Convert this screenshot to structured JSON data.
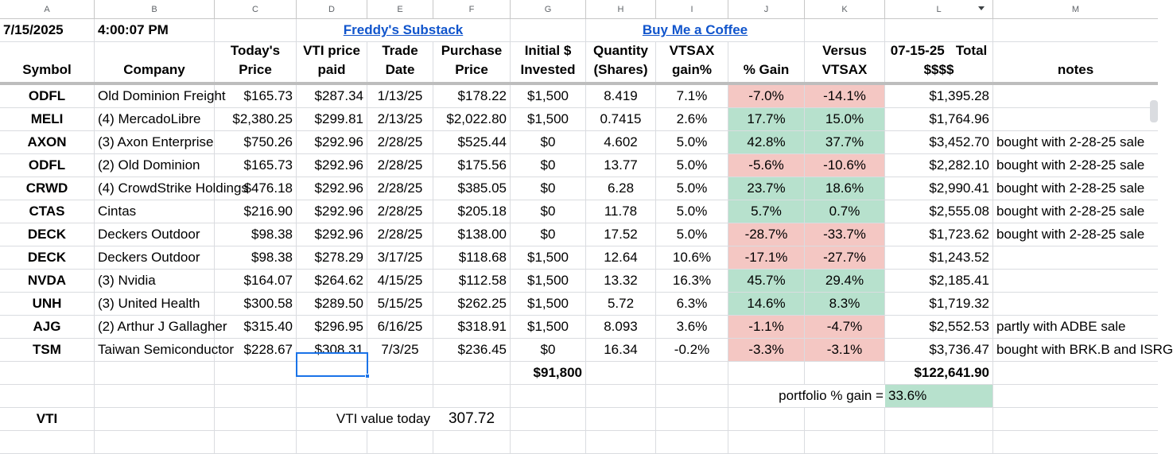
{
  "columns": [
    "A",
    "B",
    "C",
    "D",
    "E",
    "F",
    "G",
    "H",
    "I",
    "J",
    "K",
    "L",
    "M"
  ],
  "row1": {
    "date": "7/15/2025",
    "time": "4:00:07 PM",
    "substack_link": "Freddy's Substack",
    "coffee_link": "Buy Me a Coffee"
  },
  "header": {
    "symbol": "Symbol",
    "company": "Company",
    "todays_price": [
      "Today's",
      "Price"
    ],
    "vti_price_paid": [
      "VTI price",
      "paid"
    ],
    "trade_date": [
      "Trade",
      "Date"
    ],
    "purchase_price": [
      "Purchase",
      "Price"
    ],
    "initial_invested": [
      "Initial $",
      "Invested"
    ],
    "quantity": [
      "Quantity",
      "(Shares)"
    ],
    "vtsax_gain": [
      "VTSAX",
      "gain%"
    ],
    "pct_gain": "% Gain",
    "versus_vtsax": [
      "Versus",
      "VTSAX"
    ],
    "total": [
      "07-15-25   Total",
      "$$$$"
    ],
    "notes": "notes"
  },
  "rows": [
    {
      "symbol": "ODFL",
      "company": "Old Dominion Freight",
      "price": "$165.73",
      "vti": "$287.34",
      "date": "1/13/25",
      "purchase": "$178.22",
      "invested": "$1,500",
      "qty": "8.419",
      "vtsax": "7.1%",
      "gain": "-7.0%",
      "versus": "-14.1%",
      "total": "$1,395.28",
      "notes": "",
      "gain_pos": false,
      "versus_pos": false
    },
    {
      "symbol": "MELI",
      "company": "(4) MercadoLibre",
      "price": "$2,380.25",
      "vti": "$299.81",
      "date": "2/13/25",
      "purchase": "$2,022.80",
      "invested": "$1,500",
      "qty": "0.7415",
      "vtsax": "2.6%",
      "gain": "17.7%",
      "versus": "15.0%",
      "total": "$1,764.96",
      "notes": "",
      "gain_pos": true,
      "versus_pos": true
    },
    {
      "symbol": "AXON",
      "company": "(3) Axon Enterprise",
      "price": "$750.26",
      "vti": "$292.96",
      "date": "2/28/25",
      "purchase": "$525.44",
      "invested": "$0",
      "qty": "4.602",
      "vtsax": "5.0%",
      "gain": "42.8%",
      "versus": "37.7%",
      "total": "$3,452.70",
      "notes": "bought with 2-28-25 sale",
      "gain_pos": true,
      "versus_pos": true
    },
    {
      "symbol": "ODFL",
      "company": "(2) Old Dominion",
      "price": "$165.73",
      "vti": "$292.96",
      "date": "2/28/25",
      "purchase": "$175.56",
      "invested": "$0",
      "qty": "13.77",
      "vtsax": "5.0%",
      "gain": "-5.6%",
      "versus": "-10.6%",
      "total": "$2,282.10",
      "notes": "bought with 2-28-25 sale",
      "gain_pos": false,
      "versus_pos": false
    },
    {
      "symbol": "CRWD",
      "company": "(4) CrowdStrike Holdings",
      "price": "$476.18",
      "vti": "$292.96",
      "date": "2/28/25",
      "purchase": "$385.05",
      "invested": "$0",
      "qty": "6.28",
      "vtsax": "5.0%",
      "gain": "23.7%",
      "versus": "18.6%",
      "total": "$2,990.41",
      "notes": "bought with 2-28-25 sale",
      "gain_pos": true,
      "versus_pos": true
    },
    {
      "symbol": "CTAS",
      "company": "Cintas",
      "price": "$216.90",
      "vti": "$292.96",
      "date": "2/28/25",
      "purchase": "$205.18",
      "invested": "$0",
      "qty": "11.78",
      "vtsax": "5.0%",
      "gain": "5.7%",
      "versus": "0.7%",
      "total": "$2,555.08",
      "notes": "bought with 2-28-25 sale",
      "gain_pos": true,
      "versus_pos": true
    },
    {
      "symbol": "DECK",
      "company": "Deckers Outdoor",
      "price": "$98.38",
      "vti": "$292.96",
      "date": "2/28/25",
      "purchase": "$138.00",
      "invested": "$0",
      "qty": "17.52",
      "vtsax": "5.0%",
      "gain": "-28.7%",
      "versus": "-33.7%",
      "total": "$1,723.62",
      "notes": "bought with 2-28-25 sale",
      "gain_pos": false,
      "versus_pos": false
    },
    {
      "symbol": "DECK",
      "company": "Deckers Outdoor",
      "price": "$98.38",
      "vti": "$278.29",
      "date": "3/17/25",
      "purchase": "$118.68",
      "invested": "$1,500",
      "qty": "12.64",
      "vtsax": "10.6%",
      "gain": "-17.1%",
      "versus": "-27.7%",
      "total": "$1,243.52",
      "notes": "",
      "gain_pos": false,
      "versus_pos": false
    },
    {
      "symbol": "NVDA",
      "company": "(3) Nvidia",
      "price": "$164.07",
      "vti": "$264.62",
      "date": "4/15/25",
      "purchase": "$112.58",
      "invested": "$1,500",
      "qty": "13.32",
      "vtsax": "16.3%",
      "gain": "45.7%",
      "versus": "29.4%",
      "total": "$2,185.41",
      "notes": "",
      "gain_pos": true,
      "versus_pos": true
    },
    {
      "symbol": "UNH",
      "company": "(3) United Health",
      "price": "$300.58",
      "vti": "$289.50",
      "date": "5/15/25",
      "purchase": "$262.25",
      "invested": "$1,500",
      "qty": "5.72",
      "vtsax": "6.3%",
      "gain": "14.6%",
      "versus": "8.3%",
      "total": "$1,719.32",
      "notes": "",
      "gain_pos": true,
      "versus_pos": true
    },
    {
      "symbol": "AJG",
      "company": "(2) Arthur J Gallagher",
      "price": "$315.40",
      "vti": "$296.95",
      "date": "6/16/25",
      "purchase": "$318.91",
      "invested": "$1,500",
      "qty": "8.093",
      "vtsax": "3.6%",
      "gain": "-1.1%",
      "versus": "-4.7%",
      "total": "$2,552.53",
      "notes": "partly with ADBE sale",
      "gain_pos": false,
      "versus_pos": false
    },
    {
      "symbol": "TSM",
      "company": "Taiwan Semiconductor",
      "price": "$228.67",
      "vti": "$308.31",
      "date": "7/3/25",
      "purchase": "$236.45",
      "invested": "$0",
      "qty": "16.34",
      "vtsax": "-0.2%",
      "gain": "-3.3%",
      "versus": "-3.1%",
      "total": "$3,736.47",
      "notes": "bought with BRK.B and ISRG",
      "gain_pos": false,
      "versus_pos": false
    }
  ],
  "totals": {
    "invested": "$91,800",
    "total": "$122,641.90"
  },
  "portfolio": {
    "label": "portfolio % gain =",
    "value": "33.6%"
  },
  "vti_row": {
    "symbol": "VTI",
    "label": "VTI value today",
    "value": "307.72"
  },
  "colors": {
    "positive": "#b7e1cd",
    "negative": "#f4c7c3",
    "link": "#1155cc",
    "selection": "#1a73e8"
  }
}
